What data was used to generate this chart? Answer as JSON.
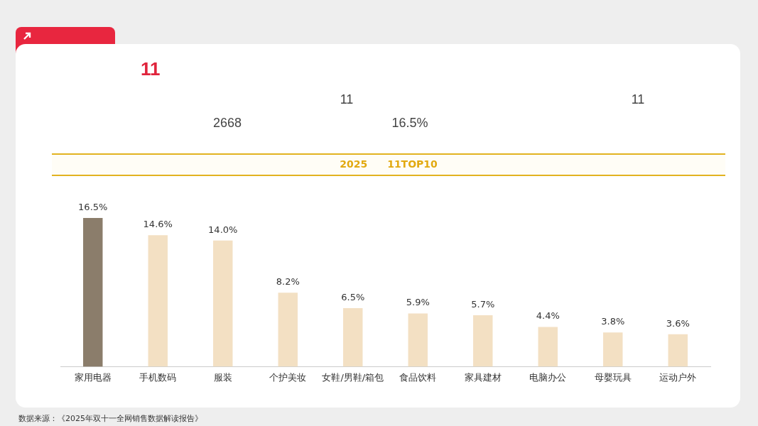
{
  "chart_data": {
    "type": "bar",
    "title": "11",
    "subtitle": "2025　　11TOP10",
    "categories": [
      "家用电器",
      "手机数码",
      "服装",
      "个护美妆",
      "女鞋/男鞋/箱包",
      "食品饮料",
      "家具建材",
      "电脑办公",
      "母婴玩具",
      "运动户外"
    ],
    "values": [
      16.5,
      14.6,
      14.0,
      8.2,
      6.5,
      5.9,
      5.7,
      4.4,
      3.8,
      3.6
    ],
    "colors": [
      "#8b7d6b",
      "#f3e0c3",
      "#f3e0c3",
      "#f3e0c3",
      "#f3e0c3",
      "#f3e0c3",
      "#f3e0c3",
      "#f3e0c3",
      "#f3e0c3",
      "#f3e0c3"
    ],
    "value_labels": [
      "16.5%",
      "14.6%",
      "14.0%",
      "8.2%",
      "6.5%",
      "5.9%",
      "5.7%",
      "4.4%",
      "3.8%",
      "3.6%"
    ],
    "grid": false,
    "legend": false,
    "tick_labels": "x",
    "annotations": [
      "11",
      "2668",
      "16.5%",
      "11",
      "数据来源：《2025年双十一全网销售数据解读报告》"
    ]
  }
}
